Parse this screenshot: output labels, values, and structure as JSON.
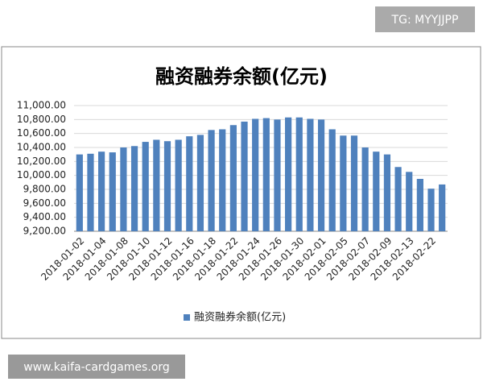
{
  "chart_data": {
    "type": "bar",
    "title": "融资融券余额(亿元)",
    "categories": [
      "2018-01-02",
      null,
      "2018-01-04",
      null,
      "2018-01-08",
      null,
      "2018-01-10",
      null,
      "2018-01-12",
      null,
      "2018-01-16",
      null,
      "2018-01-18",
      null,
      "2018-01-22",
      null,
      "2018-01-24",
      null,
      "2018-01-26",
      null,
      "2018-01-30",
      null,
      "2018-02-01",
      null,
      "2018-02-05",
      null,
      "2018-02-07",
      null,
      "2018-02-09",
      null,
      "2018-02-13",
      null,
      "2018-02-22",
      null
    ],
    "series": [
      {
        "name": "融资融券余额(亿元)",
        "color": "#4f81bd",
        "values": [
          10300,
          10310,
          10340,
          10330,
          10400,
          10420,
          10480,
          10510,
          10490,
          10510,
          10560,
          10580,
          10650,
          10660,
          10720,
          10770,
          10810,
          10820,
          10800,
          10830,
          10830,
          10810,
          10800,
          10660,
          10570,
          10570,
          10400,
          10340,
          10300,
          10120,
          10050,
          9950,
          9810,
          9870
        ]
      }
    ],
    "ylim": [
      9200,
      11000
    ],
    "yticks": [
      {
        "value": 9200,
        "label": "9,200.00"
      },
      {
        "value": 9400,
        "label": "9,400.00"
      },
      {
        "value": 9600,
        "label": "9,600.00"
      },
      {
        "value": 9800,
        "label": "9,800.00"
      },
      {
        "value": 10000,
        "label": "10,000.00"
      },
      {
        "value": 10200,
        "label": "10,200.00"
      },
      {
        "value": 10400,
        "label": "10,400.00"
      },
      {
        "value": 10600,
        "label": "10,600.00"
      },
      {
        "value": 10800,
        "label": "10,800.00"
      },
      {
        "value": 11000,
        "label": "11,000.00"
      }
    ],
    "grid": true,
    "legend": "bottom"
  },
  "watermarks": [
    "TG: MYYJJPP",
    "www.kaifa-cardgames.org"
  ]
}
